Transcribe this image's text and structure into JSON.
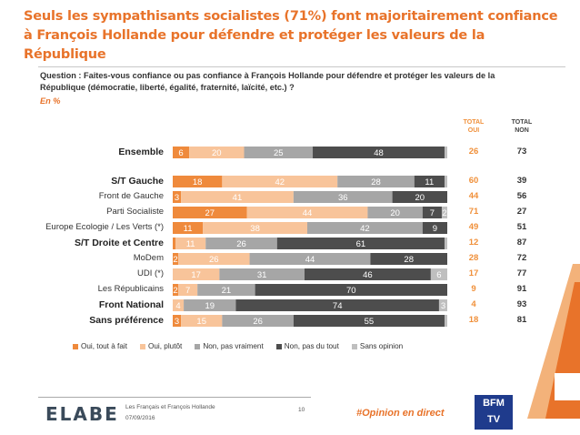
{
  "title_line1": "Seuls les sympathisants socialistes (71%) font majoritairement confiance",
  "title_line2": "à François Hollande pour défendre et protéger les valeurs de la République",
  "question_line1": "Question : Faites-vous confiance ou pas confiance à François Hollande pour défendre et protéger les valeurs de la",
  "question_line2": "République (démocratie, liberté, égalité, fraternité, laïcité, etc.) ?",
  "unit": "En %",
  "col_total_oui": [
    "TOTAL",
    "OUI"
  ],
  "col_total_non": [
    "TOTAL",
    "NON"
  ],
  "colors": {
    "oui_tout_a_fait": "#ef8a3c",
    "oui_plutot": "#f8c49a",
    "non_pas_vraiment": "#a6a6a6",
    "non_pas_du_tout": "#4d4d4d",
    "sans_opinion": "#bfbfbf",
    "accent": "#e8732a"
  },
  "chart_data": {
    "type": "bar",
    "orientation": "horizontal-stacked-100",
    "series_names": [
      "Oui, tout à fait",
      "Oui, plutôt",
      "Non, pas vraiment",
      "Non, pas du tout",
      "Sans opinion"
    ],
    "rows": [
      {
        "label": "Ensemble",
        "bold": true,
        "values": [
          6,
          20,
          25,
          48,
          1
        ],
        "total_oui": "26",
        "total_non": "73"
      },
      {
        "label": "S/T Gauche",
        "bold": true,
        "values": [
          18,
          42,
          28,
          11,
          1
        ],
        "total_oui": "60",
        "total_non": "39"
      },
      {
        "label": "Front de Gauche",
        "bold": false,
        "values": [
          3,
          41,
          36,
          20,
          0
        ],
        "total_oui": "44",
        "total_non": "56"
      },
      {
        "label": "Parti Socialiste",
        "bold": false,
        "values": [
          27,
          44,
          20,
          7,
          2
        ],
        "total_oui": "71",
        "total_non": "27"
      },
      {
        "label": "Europe Ecologie / Les Verts (*)",
        "bold": false,
        "values": [
          11,
          38,
          42,
          9,
          0
        ],
        "total_oui": "49",
        "total_non": "51"
      },
      {
        "label": "S/T Droite et Centre",
        "bold": true,
        "values": [
          1,
          11,
          26,
          61,
          1
        ],
        "total_oui": "12",
        "total_non": "87"
      },
      {
        "label": "MoDem",
        "bold": false,
        "values": [
          2,
          26,
          44,
          28,
          0
        ],
        "total_oui": "28",
        "total_non": "72"
      },
      {
        "label": "UDI (*)",
        "bold": false,
        "values": [
          0,
          17,
          31,
          46,
          6
        ],
        "total_oui": "17",
        "total_non": "77"
      },
      {
        "label": "Les Républicains",
        "bold": false,
        "values": [
          2,
          7,
          21,
          70,
          0
        ],
        "total_oui": "9",
        "total_non": "91"
      },
      {
        "label": "Front National",
        "bold": true,
        "values": [
          0,
          4,
          19,
          74,
          3
        ],
        "total_oui": "4",
        "total_non": "93"
      },
      {
        "label": "Sans préférence",
        "bold": true,
        "values": [
          3,
          15,
          26,
          55,
          1
        ],
        "total_oui": "18",
        "total_non": "81"
      }
    ],
    "shown_labels": [
      [
        "6",
        "20",
        "25",
        "48",
        ""
      ],
      [
        "18",
        "42",
        "28",
        "11",
        ""
      ],
      [
        "3",
        "41",
        "36",
        "20",
        ""
      ],
      [
        "27",
        "44",
        "20",
        "7",
        "2"
      ],
      [
        "11",
        "38",
        "42",
        "9",
        ""
      ],
      [
        "",
        "11",
        "26",
        "61",
        ""
      ],
      [
        "2",
        "26",
        "44",
        "28",
        ""
      ],
      [
        "",
        "17",
        "31",
        "46",
        "6"
      ],
      [
        "2",
        "7",
        "21",
        "70",
        ""
      ],
      [
        "",
        "4",
        "19",
        "74",
        "3"
      ],
      [
        "3",
        "15",
        "26",
        "55",
        ""
      ]
    ],
    "xlim": [
      0,
      100
    ],
    "legend_position": "bottom"
  },
  "footer": {
    "logo": "ELABE",
    "study": "Les Français et François Hollande",
    "date": "07/09/2016",
    "page": "10",
    "hashtag": "#Opinion en direct",
    "partner": [
      "BFM",
      "TV"
    ]
  }
}
